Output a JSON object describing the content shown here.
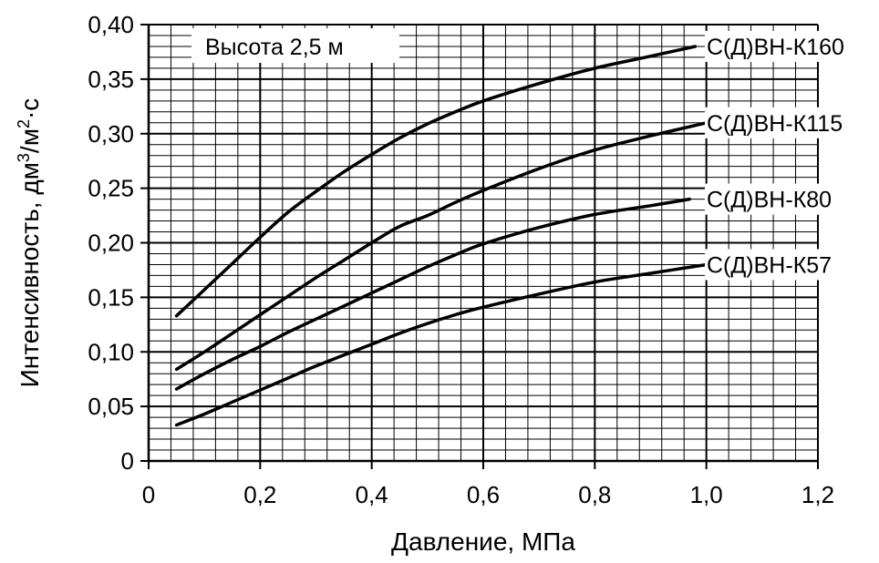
{
  "chart_data": {
    "type": "line",
    "xlabel": "Давление, МПа",
    "ylabel_parts": [
      "Интенсивность, дм",
      "3",
      "/м",
      "2",
      "·с"
    ],
    "annotation": "Высота 2,5 м",
    "xlim": [
      0,
      1.2
    ],
    "ylim": [
      0,
      0.4
    ],
    "x_major_step": 0.2,
    "x_minor_step": 0.04,
    "y_major_step": 0.05,
    "y_minor_step": 0.01,
    "x_tick_labels": [
      "0",
      "0,2",
      "0,4",
      "0,6",
      "0,8",
      "1,0",
      "1,2"
    ],
    "y_tick_labels": [
      "0",
      "0,05",
      "0,10",
      "0,15",
      "0,20",
      "0,25",
      "0,30",
      "0,35",
      "0,40"
    ],
    "grid": true,
    "series": [
      {
        "name": "С(Д)ВН-К160",
        "x": [
          0.05,
          0.1,
          0.15,
          0.2,
          0.25,
          0.3,
          0.35,
          0.4,
          0.45,
          0.5,
          0.55,
          0.6,
          0.7,
          0.8,
          0.9,
          0.98
        ],
        "y": [
          0.133,
          0.157,
          0.181,
          0.205,
          0.228,
          0.247,
          0.265,
          0.281,
          0.296,
          0.309,
          0.32,
          0.33,
          0.346,
          0.36,
          0.371,
          0.38
        ]
      },
      {
        "name": "С(Д)ВН-К115",
        "x": [
          0.05,
          0.1,
          0.15,
          0.2,
          0.25,
          0.3,
          0.35,
          0.4,
          0.45,
          0.5,
          0.55,
          0.6,
          0.7,
          0.8,
          0.9,
          1.0
        ],
        "y": [
          0.084,
          0.1,
          0.117,
          0.134,
          0.151,
          0.168,
          0.184,
          0.2,
          0.215,
          0.225,
          0.237,
          0.248,
          0.268,
          0.285,
          0.298,
          0.31
        ]
      },
      {
        "name": "С(Д)ВН-К80",
        "x": [
          0.05,
          0.1,
          0.15,
          0.2,
          0.25,
          0.3,
          0.35,
          0.4,
          0.45,
          0.5,
          0.55,
          0.6,
          0.7,
          0.8,
          0.9,
          0.97
        ],
        "y": [
          0.066,
          0.08,
          0.093,
          0.105,
          0.118,
          0.13,
          0.142,
          0.154,
          0.166,
          0.178,
          0.189,
          0.199,
          0.214,
          0.226,
          0.234,
          0.24
        ]
      },
      {
        "name": "С(Д)ВН-К57",
        "x": [
          0.05,
          0.1,
          0.15,
          0.2,
          0.25,
          0.3,
          0.35,
          0.4,
          0.45,
          0.5,
          0.55,
          0.6,
          0.7,
          0.8,
          0.9,
          1.0
        ],
        "y": [
          0.033,
          0.043,
          0.054,
          0.065,
          0.076,
          0.087,
          0.097,
          0.107,
          0.117,
          0.126,
          0.134,
          0.141,
          0.153,
          0.164,
          0.172,
          0.18
        ]
      }
    ]
  }
}
